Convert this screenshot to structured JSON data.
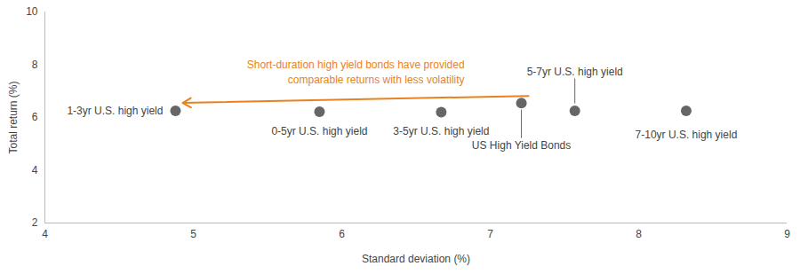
{
  "chart_data": {
    "type": "scatter",
    "x_label": "Standard deviation (%)",
    "y_label": "Total return (%)",
    "xlim": [
      4,
      9
    ],
    "xticks": [
      4,
      5,
      6,
      7,
      8,
      9
    ],
    "ylim": [
      2,
      10
    ],
    "yticks": [
      2,
      4,
      6,
      8,
      10
    ],
    "grid": false,
    "color": "#666666",
    "marker": "circle",
    "points": [
      {
        "label": "1-3yr U.S. high yield",
        "x": 4.88,
        "y": 6.25
      },
      {
        "label": "0-5yr U.S. high yield",
        "x": 5.85,
        "y": 6.22
      },
      {
        "label": "3-5yr U.S. high yield",
        "x": 6.67,
        "y": 6.2
      },
      {
        "label": "US High Yield Bonds",
        "x": 7.21,
        "y": 6.55
      },
      {
        "label": "5-7yr U.S. high yield",
        "x": 7.57,
        "y": 6.25
      },
      {
        "label": "7-10yr U.S. high yield",
        "x": 8.32,
        "y": 6.25
      }
    ],
    "annotation": {
      "text": "Short-duration high yield bonds have provided\ncomparable returns with less volatility",
      "color": "#E8821E"
    }
  }
}
